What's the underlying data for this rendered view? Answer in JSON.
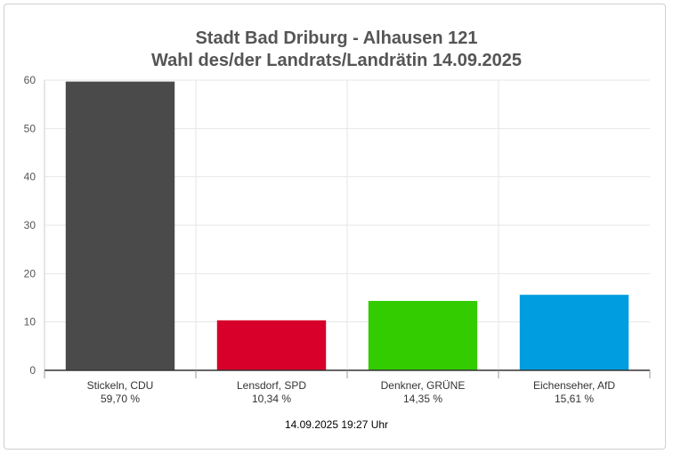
{
  "chart_data": {
    "type": "bar",
    "title": "Stadt Bad Driburg - Alhausen 121",
    "subtitle": "Wahl des/der Landrats/Landrätin 14.09.2025",
    "categories": [
      "Stickeln, CDU",
      "Lensdorf, SPD",
      "Denkner, GRÜNE",
      "Eichenseher, AfD"
    ],
    "value_labels": [
      "59,70 %",
      "10,34 %",
      "14,35 %",
      "15,61 %"
    ],
    "values": [
      59.7,
      10.34,
      14.35,
      15.61
    ],
    "colors": [
      "#4a4a4a",
      "#d8002b",
      "#33cc00",
      "#009de0"
    ],
    "ylim": [
      0,
      60
    ],
    "yticks": [
      0,
      10,
      20,
      30,
      40,
      50,
      60
    ],
    "grid": true,
    "legend": "none"
  },
  "footer": {
    "timestamp": "14.09.2025 19:27 Uhr"
  }
}
